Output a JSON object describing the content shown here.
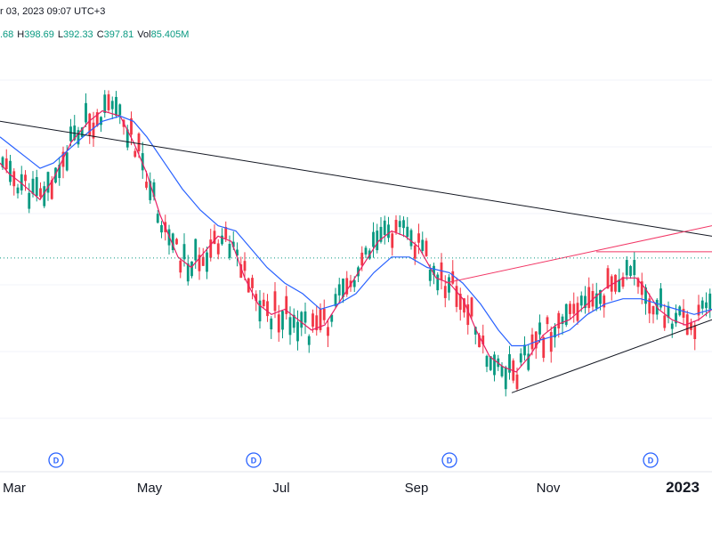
{
  "header": {
    "date_text": "r 03, 2023 09:07 UTC+3",
    "open_value": ".68",
    "high_label": "H",
    "high_value": "398.69",
    "low_label": "L",
    "low_value": "392.33",
    "close_label": "C",
    "close_value": "397.81",
    "volume_label": "Vol",
    "volume_value": "85.405M"
  },
  "colors": {
    "up": "#089981",
    "down": "#f23645",
    "ma_fast": "#e91e63",
    "ma_slow": "#2962ff",
    "trendline": "#131722",
    "pink_line": "#f23665",
    "price_line": "#089981",
    "grid": "#f0f3fa"
  },
  "x_axis": {
    "labels": [
      "Mar",
      "May",
      "Jul",
      "Sep",
      "Nov",
      "2023"
    ],
    "highlighted": "2023"
  },
  "dividend_markers": [
    "D",
    "D",
    "D",
    "D"
  ],
  "chart_data": {
    "type": "candlestick",
    "instrument_interval": "1D",
    "price_min": 362,
    "price_max": 437,
    "series": [
      {
        "name": "",
        "type": "line",
        "note": "fast moving average",
        "values": [
          [
            0,
            416
          ],
          [
            10,
            414
          ],
          [
            25,
            412
          ],
          [
            45,
            409
          ],
          [
            60,
            413
          ],
          [
            80,
            420
          ],
          [
            100,
            424
          ],
          [
            115,
            426
          ],
          [
            135,
            425
          ],
          [
            150,
            420
          ],
          [
            165,
            414
          ],
          [
            180,
            406
          ],
          [
            200,
            398
          ],
          [
            215,
            396
          ],
          [
            230,
            399
          ],
          [
            245,
            402
          ],
          [
            260,
            401
          ],
          [
            275,
            394
          ],
          [
            290,
            389
          ],
          [
            305,
            387
          ],
          [
            320,
            388
          ],
          [
            335,
            386
          ],
          [
            350,
            384
          ],
          [
            365,
            385
          ],
          [
            380,
            389
          ],
          [
            395,
            393
          ],
          [
            410,
            397
          ],
          [
            425,
            401
          ],
          [
            440,
            403
          ],
          [
            455,
            402
          ],
          [
            470,
            400
          ],
          [
            490,
            394
          ],
          [
            505,
            393
          ],
          [
            520,
            390
          ],
          [
            535,
            384
          ],
          [
            550,
            379
          ],
          [
            565,
            377
          ],
          [
            580,
            376
          ],
          [
            595,
            379
          ],
          [
            610,
            383
          ],
          [
            625,
            385
          ],
          [
            640,
            386
          ],
          [
            660,
            389
          ],
          [
            680,
            392
          ],
          [
            700,
            394
          ],
          [
            715,
            394
          ],
          [
            725,
            392
          ],
          [
            740,
            388
          ],
          [
            755,
            386
          ],
          [
            770,
            385
          ],
          [
            785,
            386
          ],
          [
            800,
            388
          ]
        ]
      },
      {
        "name": "",
        "type": "line",
        "note": "slow moving average",
        "values": [
          [
            0,
            421
          ],
          [
            15,
            419
          ],
          [
            30,
            417
          ],
          [
            45,
            415
          ],
          [
            60,
            416
          ],
          [
            80,
            419
          ],
          [
            100,
            422
          ],
          [
            115,
            424
          ],
          [
            135,
            425
          ],
          [
            150,
            424
          ],
          [
            165,
            421
          ],
          [
            185,
            416
          ],
          [
            205,
            411
          ],
          [
            225,
            407
          ],
          [
            245,
            404
          ],
          [
            265,
            403
          ],
          [
            285,
            399
          ],
          [
            300,
            396
          ],
          [
            320,
            393
          ],
          [
            340,
            391
          ],
          [
            360,
            388
          ],
          [
            380,
            389
          ],
          [
            400,
            391
          ],
          [
            420,
            395
          ],
          [
            440,
            398
          ],
          [
            460,
            398
          ],
          [
            480,
            396
          ],
          [
            505,
            395
          ],
          [
            520,
            393
          ],
          [
            540,
            389
          ],
          [
            560,
            384
          ],
          [
            575,
            381
          ],
          [
            590,
            381
          ],
          [
            605,
            382
          ],
          [
            625,
            383
          ],
          [
            640,
            384
          ],
          [
            660,
            387
          ],
          [
            680,
            389
          ],
          [
            700,
            390
          ],
          [
            720,
            390
          ],
          [
            740,
            389
          ],
          [
            760,
            388
          ],
          [
            780,
            387
          ],
          [
            800,
            388
          ]
        ]
      }
    ],
    "trendlines": [
      {
        "name": "",
        "color": "black",
        "points": [
          [
            0,
            424
          ],
          [
            800,
            402
          ]
        ]
      },
      {
        "name": "",
        "color": "black",
        "points": [
          [
            575,
            372
          ],
          [
            800,
            386
          ]
        ]
      },
      {
        "name": "",
        "color": "pink",
        "points": [
          [
            500,
            393
          ],
          [
            800,
            404
          ]
        ]
      },
      {
        "name": "",
        "color": "pink",
        "points": [
          [
            670,
            399
          ],
          [
            800,
            399
          ]
        ]
      }
    ],
    "last_price": 397.81
  }
}
